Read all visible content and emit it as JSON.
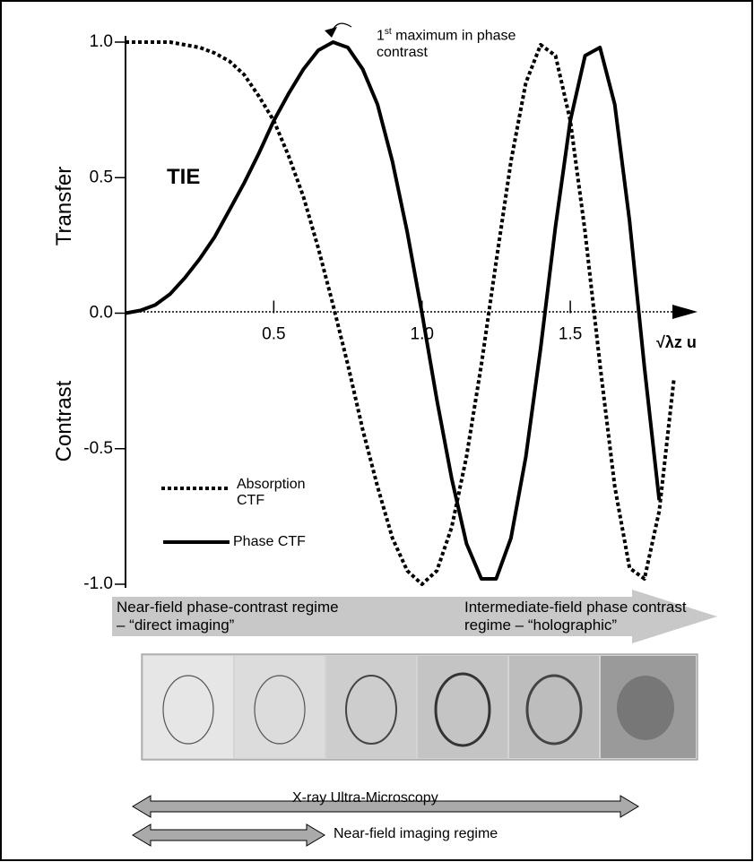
{
  "chart_data": {
    "type": "line",
    "axis_labels": [
      "Transfer",
      "Contrast"
    ],
    "x_label": "√λz u",
    "inset_label": "TIE",
    "annotation": {
      "number": "1",
      "suffix": "st",
      "text": "maximum in phase contrast"
    },
    "x": [
      0,
      0.05,
      0.1,
      0.15,
      0.2,
      0.25,
      0.3,
      0.35,
      0.4,
      0.45,
      0.5,
      0.55,
      0.6,
      0.65,
      0.7,
      0.75,
      0.8,
      0.85,
      0.9,
      0.95,
      1.0,
      1.05,
      1.1,
      1.15,
      1.2,
      1.25,
      1.3,
      1.35,
      1.4,
      1.45,
      1.5,
      1.55,
      1.6,
      1.65,
      1.7,
      1.75,
      1.8,
      1.85
    ],
    "series": [
      {
        "name": "Absorption CTF",
        "color": "#000000",
        "dash": true,
        "values": [
          1,
          1,
          1.0,
          1.0,
          0.99,
          0.98,
          0.96,
          0.93,
          0.88,
          0.8,
          0.71,
          0.58,
          0.43,
          0.24,
          0.03,
          -0.19,
          -0.43,
          -0.64,
          -0.83,
          -0.95,
          -1,
          -0.95,
          -0.79,
          -0.53,
          -0.19,
          0.19,
          0.56,
          0.85,
          0.99,
          0.95,
          0.71,
          0.3,
          -0.19,
          -0.64,
          -0.94,
          -0.98,
          -0.73,
          -0.24
        ]
      },
      {
        "name": "Phase CTF",
        "color": "#000000",
        "dash": false,
        "values": [
          0,
          0.01,
          0.03,
          0.07,
          0.13,
          0.2,
          0.28,
          0.38,
          0.48,
          0.59,
          0.71,
          0.81,
          0.9,
          0.97,
          1.0,
          0.98,
          0.9,
          0.77,
          0.56,
          0.3,
          0,
          -0.32,
          -0.61,
          -0.85,
          -0.98,
          -0.98,
          -0.83,
          -0.53,
          -0.13,
          0.32,
          0.71,
          0.95,
          0.98,
          0.77,
          0.34,
          -0.2,
          -0.69,
          null
        ]
      }
    ],
    "xlim": [
      0,
      1.92
    ],
    "ylim": [
      -1.0,
      1.0
    ],
    "xticks": [
      0.5,
      {
        "value": 1,
        "label": "1.0"
      },
      1.5
    ],
    "yticks": [
      {
        "value": -1,
        "label": "-1.0"
      },
      -0.5,
      {
        "value": 0,
        "label": "0.0"
      },
      0.5,
      {
        "value": 1,
        "label": "1.0"
      }
    ],
    "regimes": [
      "Near-field phase-contrast regime – “direct imaging”",
      "Intermediate-field phase contrast regime – “holographic”"
    ],
    "ranges": [
      "X-ray Ultra-Microscopy",
      "Near-field imaging regime"
    ]
  }
}
